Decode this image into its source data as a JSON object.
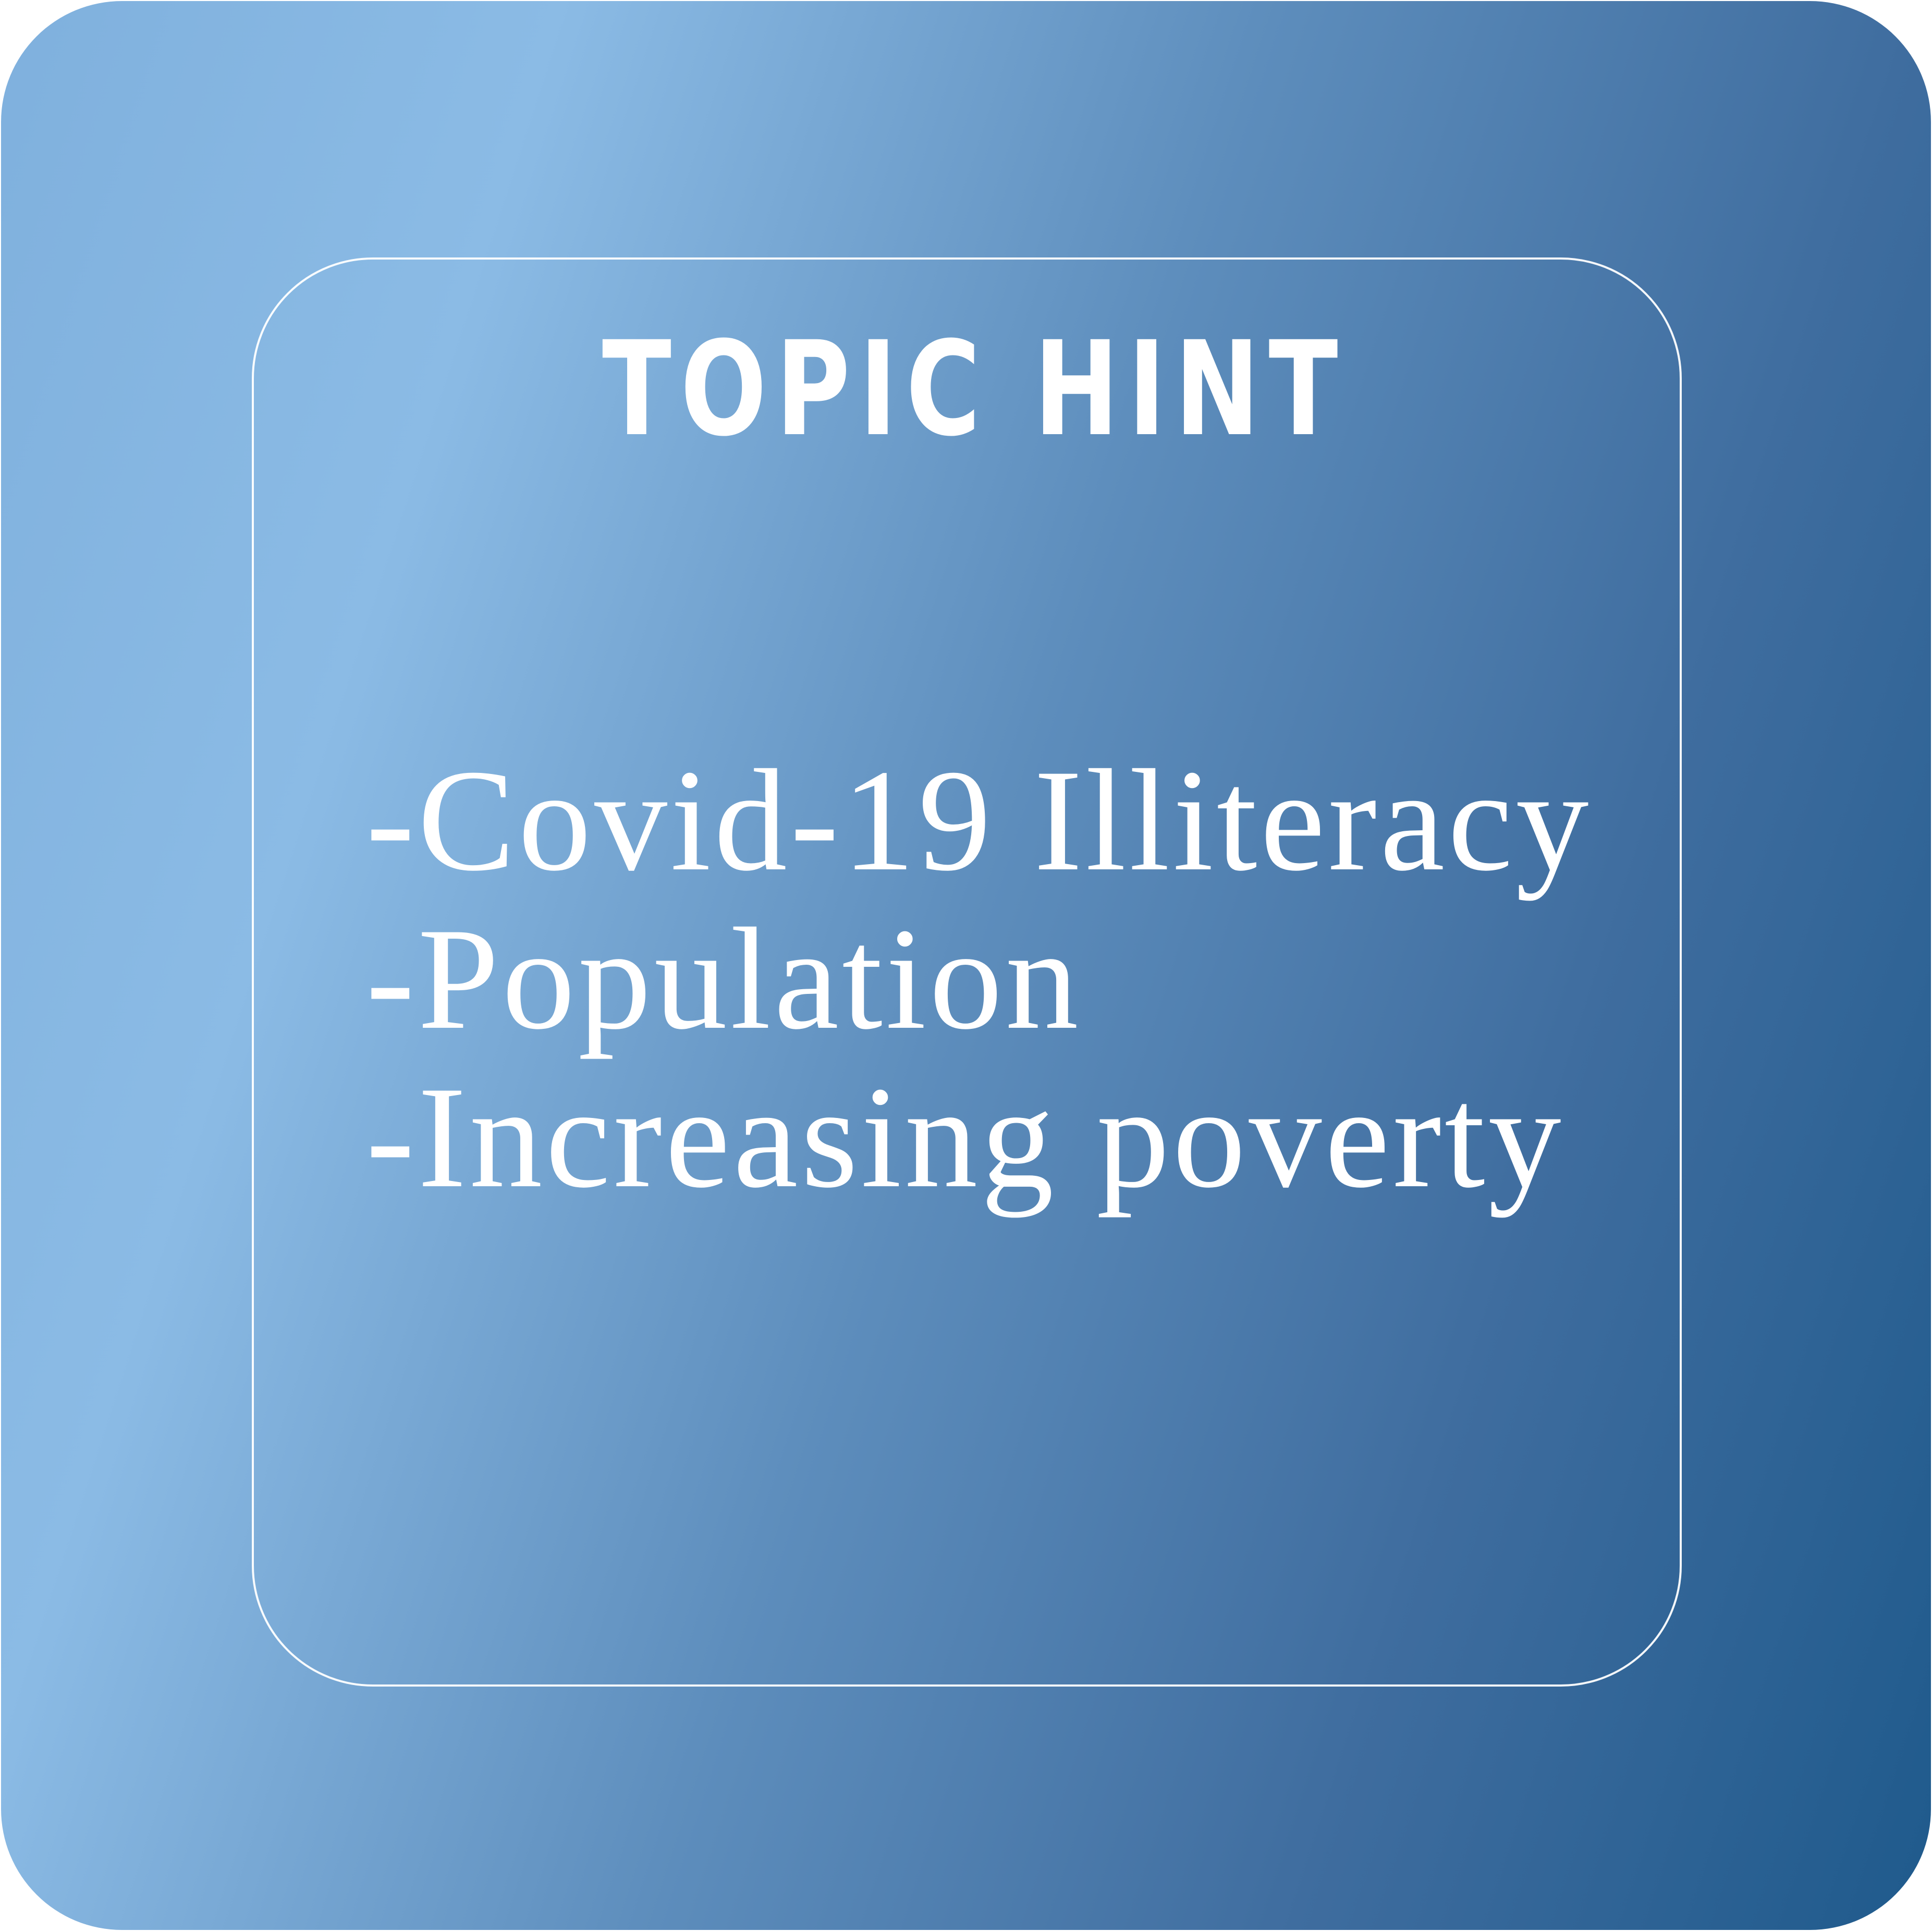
{
  "title": "TOPIC HINT",
  "items": [
    {
      "text": "-Covid-19 Illiteracy"
    },
    {
      "text": "-Population"
    },
    {
      "text": "-Increasing poverty"
    }
  ],
  "colors": {
    "gradient_light": "#8bbbe5",
    "gradient_dark": "#1f5a8c",
    "text": "#ffffff",
    "frame": "#ffffff"
  }
}
